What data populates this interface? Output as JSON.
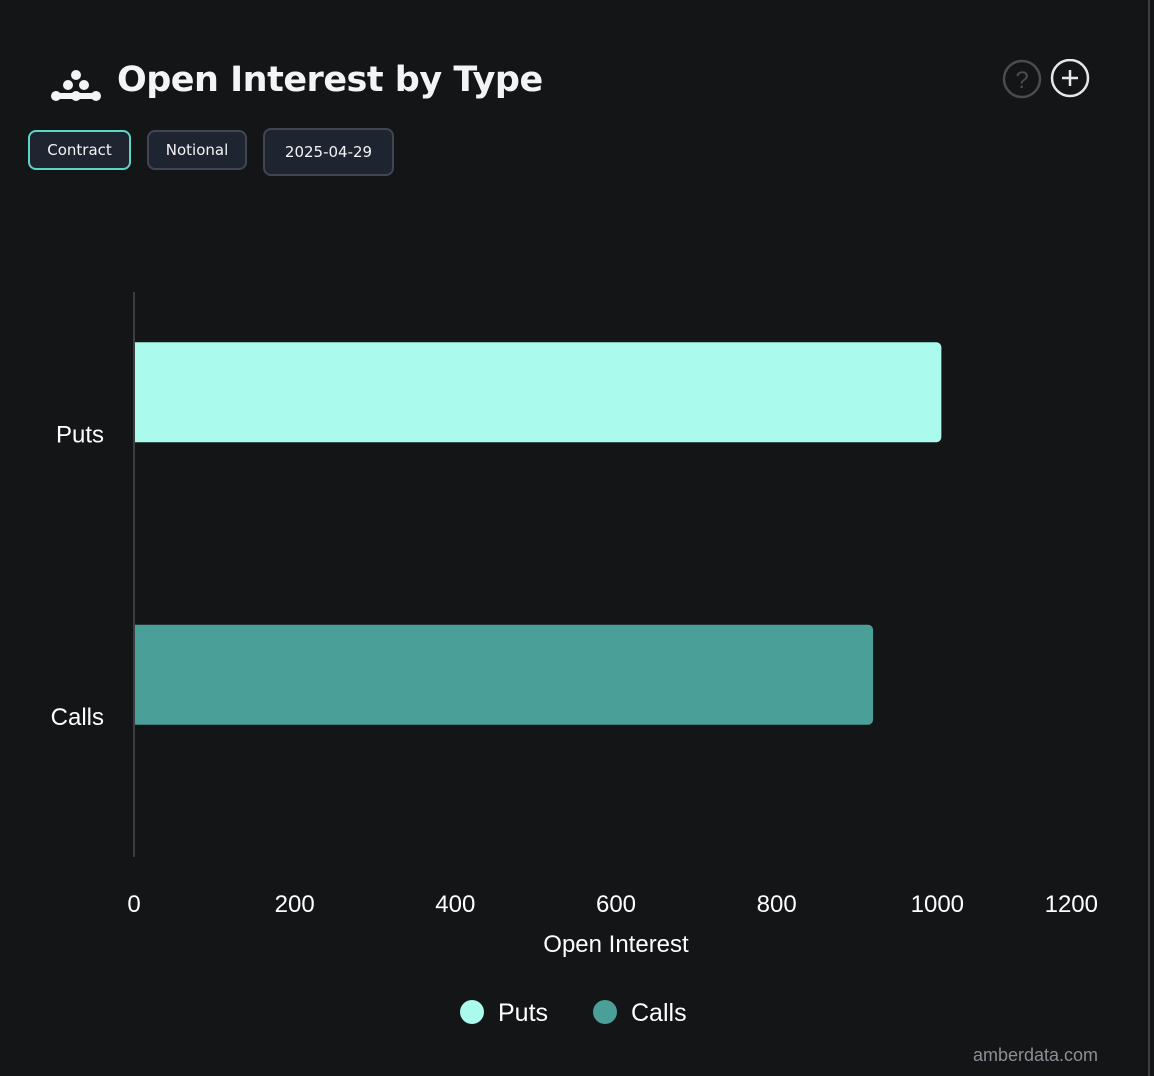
{
  "header": {
    "title": "Open Interest by Type",
    "help_icon": "question-circle-icon",
    "add_icon": "plus-circle-icon"
  },
  "toggles": [
    {
      "label": "Contract",
      "active": true
    },
    {
      "label": "Notional",
      "active": false
    }
  ],
  "date_picker": {
    "value": "2025-04-29"
  },
  "credit": "amberdata.com",
  "colors": {
    "puts": "#aafbee",
    "calls": "#4a9f98",
    "active_border": "#5cd6c4",
    "background": "#141517"
  },
  "chart_data": {
    "type": "bar",
    "orientation": "horizontal",
    "categories": [
      "Puts",
      "Calls"
    ],
    "series": [
      {
        "name": "Puts",
        "values": [
          1005,
          null
        ],
        "color": "#aafbee"
      },
      {
        "name": "Calls",
        "values": [
          null,
          920
        ],
        "color": "#4a9f98"
      }
    ],
    "xlabel": "Open Interest",
    "xlim": [
      0,
      1200
    ],
    "xticks": [
      0,
      200,
      400,
      600,
      800,
      1000,
      1200
    ],
    "grid": false,
    "legend_position": "bottom"
  }
}
